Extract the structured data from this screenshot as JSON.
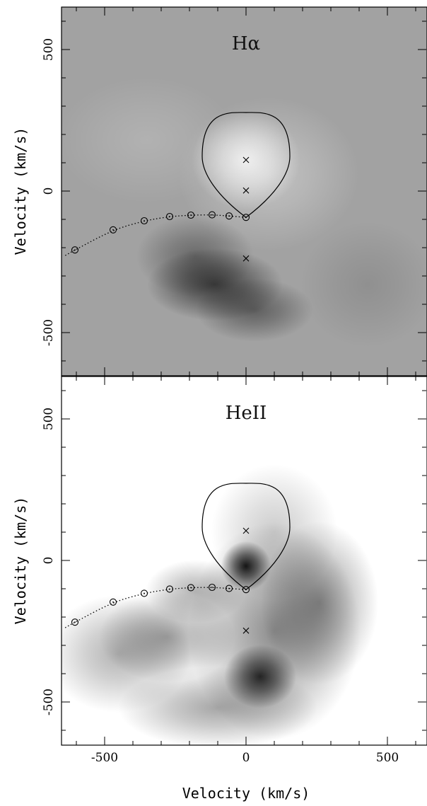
{
  "chart_data": [
    {
      "type": "heatmap",
      "title": "Hα",
      "xlabel": "Velocity (km/s)",
      "ylabel": "Velocity (km/s)",
      "xlim": [
        -650,
        640
      ],
      "ylim": [
        -650,
        650
      ],
      "yticks": [
        500,
        0,
        -500
      ],
      "ytick_labels": [
        "500",
        "0",
        "-500"
      ],
      "background": "gray",
      "intensity_blobs": [
        {
          "vx": 0,
          "vy": 110,
          "sx": 120,
          "sy": 110,
          "amp": 0.55
        },
        {
          "vx": 80,
          "vy": 60,
          "sx": 200,
          "sy": 170,
          "amp": 0.25
        },
        {
          "vx": -350,
          "vy": 180,
          "sx": 200,
          "sy": 140,
          "amp": 0.12
        },
        {
          "vx": -110,
          "vy": -330,
          "sx": 150,
          "sy": 80,
          "amp": -0.45
        },
        {
          "vx": -180,
          "vy": -230,
          "sx": 130,
          "sy": 90,
          "amp": -0.25
        },
        {
          "vx": 30,
          "vy": -420,
          "sx": 130,
          "sy": 70,
          "amp": -0.3
        },
        {
          "vx": 430,
          "vy": -330,
          "sx": 150,
          "sy": 140,
          "amp": -0.08
        }
      ],
      "roche_lobe_center": [
        0,
        110
      ],
      "markers_x": [
        {
          "x": 0,
          "y": 110
        },
        {
          "x": 0,
          "y": 2
        },
        {
          "x": 0,
          "y": -238
        }
      ],
      "stream_points": [
        {
          "x": 0,
          "y": -93
        },
        {
          "x": -60,
          "y": -88
        },
        {
          "x": -120,
          "y": -84
        },
        {
          "x": -195,
          "y": -85
        },
        {
          "x": -270,
          "y": -90
        },
        {
          "x": -360,
          "y": -105
        },
        {
          "x": -470,
          "y": -137
        },
        {
          "x": -605,
          "y": -208
        }
      ]
    },
    {
      "type": "heatmap",
      "title": "HeII",
      "xlabel": "Velocity (km/s)",
      "ylabel": "Velocity (km/s)",
      "xlim": [
        -650,
        640
      ],
      "ylim": [
        -650,
        650
      ],
      "xticks": [
        -500,
        0,
        500
      ],
      "xtick_labels": [
        "-500",
        "0",
        "500"
      ],
      "yticks": [
        500,
        0,
        -500
      ],
      "ytick_labels": [
        "500",
        "0",
        "-500"
      ],
      "background": "white",
      "intensity_blobs": [
        {
          "vx": 0,
          "vy": -20,
          "sx": 55,
          "sy": 55,
          "amp": 0.9
        },
        {
          "vx": 50,
          "vy": -410,
          "sx": 80,
          "sy": 70,
          "amp": 0.8
        },
        {
          "vx": 100,
          "vy": -250,
          "sx": 190,
          "sy": 240,
          "amp": 0.45
        },
        {
          "vx": 260,
          "vy": -150,
          "sx": 130,
          "sy": 180,
          "amp": 0.4
        },
        {
          "vx": -280,
          "vy": -270,
          "sx": 150,
          "sy": 100,
          "amp": 0.35
        },
        {
          "vx": -450,
          "vy": -330,
          "sx": 160,
          "sy": 130,
          "amp": 0.3
        },
        {
          "vx": -100,
          "vy": -520,
          "sx": 220,
          "sy": 90,
          "amp": 0.35
        },
        {
          "vx": 100,
          "vy": 100,
          "sx": 140,
          "sy": 150,
          "amp": 0.2
        },
        {
          "vx": -180,
          "vy": -110,
          "sx": 110,
          "sy": 70,
          "amp": 0.3
        }
      ],
      "roche_lobe_center": [
        0,
        105
      ],
      "markers_x": [
        {
          "x": 0,
          "y": 105
        },
        {
          "x": 0,
          "y": -248
        }
      ],
      "stream_points": [
        {
          "x": 0,
          "y": -103
        },
        {
          "x": -60,
          "y": -99
        },
        {
          "x": -120,
          "y": -95
        },
        {
          "x": -195,
          "y": -96
        },
        {
          "x": -270,
          "y": -101
        },
        {
          "x": -360,
          "y": -116
        },
        {
          "x": -470,
          "y": -147
        },
        {
          "x": -605,
          "y": -218
        }
      ]
    }
  ]
}
